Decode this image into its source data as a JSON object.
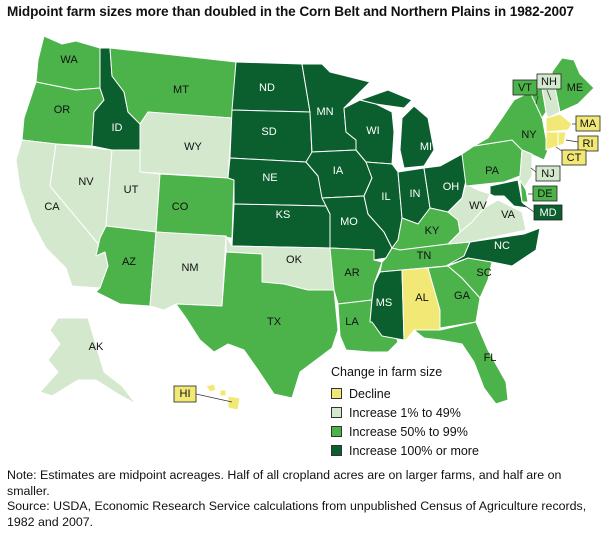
{
  "title": "Midpoint farm sizes more than doubled in the Corn Belt and Northern Plains in 1982-2007",
  "colors": {
    "decline": "#f2e875",
    "increase_1_49": "#d3e8cd",
    "increase_50_99": "#4cb24a",
    "increase_100_plus": "#0b5f2e"
  },
  "legend": {
    "title": "Change in farm size",
    "items": [
      {
        "label": "Decline",
        "color": "#f2e875"
      },
      {
        "label": "Increase 1% to 49%",
        "color": "#d3e8cd"
      },
      {
        "label": "Increase 50% to 99%",
        "color": "#4cb24a"
      },
      {
        "label": "Increase 100% or more",
        "color": "#0b5f2e"
      }
    ]
  },
  "states": {
    "WA": "increase_50_99",
    "OR": "increase_50_99",
    "CA": "increase_1_49",
    "NV": "increase_1_49",
    "ID": "increase_100_plus",
    "MT": "increase_50_99",
    "WY": "increase_1_49",
    "UT": "increase_1_49",
    "AZ": "increase_50_99",
    "CO": "increase_50_99",
    "NM": "increase_1_49",
    "ND": "increase_100_plus",
    "SD": "increase_100_plus",
    "NE": "increase_100_plus",
    "KS": "increase_100_plus",
    "OK": "increase_1_49",
    "TX": "increase_50_99",
    "MN": "increase_100_plus",
    "IA": "increase_100_plus",
    "MO": "increase_100_plus",
    "AR": "increase_50_99",
    "LA": "increase_50_99",
    "WI": "increase_100_plus",
    "IL": "increase_100_plus",
    "MS": "increase_100_plus",
    "MI": "increase_100_plus",
    "IN": "increase_100_plus",
    "OH": "increase_100_plus",
    "KY": "increase_50_99",
    "TN": "increase_50_99",
    "AL": "decline",
    "GA": "increase_50_99",
    "FL": "increase_50_99",
    "SC": "increase_50_99",
    "NC": "increase_100_plus",
    "VA": "increase_1_49",
    "WV": "increase_1_49",
    "PA": "increase_50_99",
    "NY": "increase_50_99",
    "VT": "increase_50_99",
    "NH": "increase_1_49",
    "ME": "increase_50_99",
    "MA": "decline",
    "RI": "decline",
    "CT": "decline",
    "NJ": "increase_1_49",
    "DE": "increase_50_99",
    "MD": "increase_100_plus",
    "AK": "increase_1_49",
    "HI": "decline"
  },
  "notes": {
    "note": "Note: Estimates are midpoint acreages. Half of all cropland acres are on larger farms, and half are on smaller.",
    "source": "Source: USDA, Economic Research Service calculations from unpublished Census of Agriculture records, 1982 and 2007."
  }
}
